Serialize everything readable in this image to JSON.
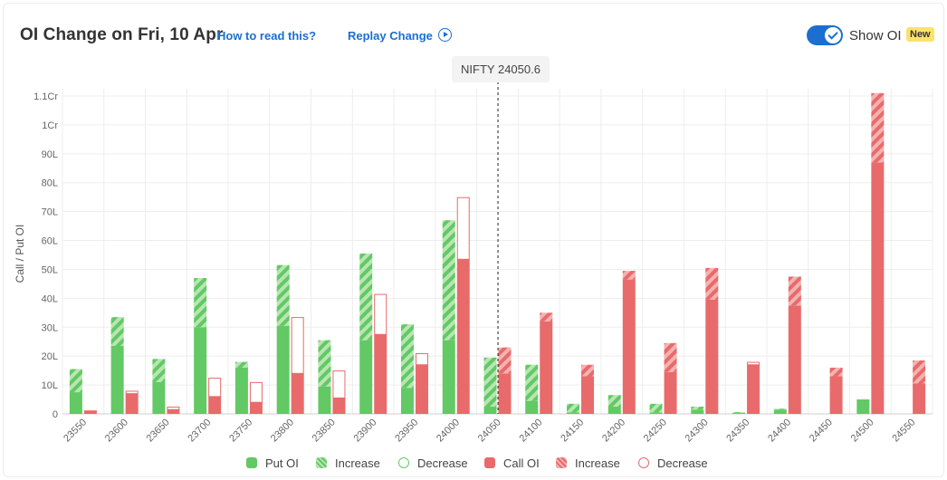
{
  "header": {
    "title": "OI Change on Fri, 10 Apr",
    "how_to_label": "How to read this?",
    "replay_label": "Replay Change",
    "show_oi_label": "Show OI",
    "new_badge": "New",
    "show_oi_enabled": true
  },
  "spot": {
    "label": "NIFTY 24050.6"
  },
  "colors": {
    "put": "#62c965",
    "put_light": "#b8e6b2",
    "call": "#e96a6a",
    "call_light": "#f4b3b3",
    "grid": "#ededed",
    "accent": "#1a6fd1"
  },
  "legend": [
    {
      "label": "Put OI",
      "kind": "solid",
      "side": "put"
    },
    {
      "label": "Increase",
      "kind": "hatch",
      "side": "put"
    },
    {
      "label": "Decrease",
      "kind": "outline",
      "side": "put"
    },
    {
      "label": "Call OI",
      "kind": "solid",
      "side": "call"
    },
    {
      "label": "Increase",
      "kind": "hatch",
      "side": "call"
    },
    {
      "label": "Decrease",
      "kind": "outline",
      "side": "call"
    }
  ],
  "chart_data": {
    "type": "bar",
    "ylabel": "Call / Put OI",
    "ylim": [
      0,
      110
    ],
    "y_ticks": [
      {
        "value": 0,
        "label": "0"
      },
      {
        "value": 10,
        "label": "10L"
      },
      {
        "value": 20,
        "label": "20L"
      },
      {
        "value": 30,
        "label": "30L"
      },
      {
        "value": 40,
        "label": "40L"
      },
      {
        "value": 50,
        "label": "50L"
      },
      {
        "value": 60,
        "label": "60L"
      },
      {
        "value": 70,
        "label": "70L"
      },
      {
        "value": 80,
        "label": "80L"
      },
      {
        "value": 90,
        "label": "90L"
      },
      {
        "value": 100,
        "label": "1Cr"
      },
      {
        "value": 110,
        "label": "1.1Cr"
      }
    ],
    "spot_strike": 24050.6,
    "categories": [
      "23550",
      "23600",
      "23650",
      "23700",
      "23750",
      "23800",
      "23850",
      "23900",
      "23950",
      "24000",
      "24050",
      "24100",
      "24150",
      "24200",
      "24250",
      "24300",
      "24350",
      "24400",
      "24450",
      "24500",
      "24550"
    ],
    "series": [
      {
        "name": "Put OI",
        "oi": [
          7.5,
          23.5,
          11,
          30,
          16,
          30.5,
          9.5,
          25.5,
          9,
          25.5,
          2.5,
          4.5,
          0.5,
          2.5,
          0.5,
          1.5,
          0.3,
          1.5,
          0,
          5,
          0
        ],
        "change": [
          8,
          10,
          8,
          17,
          2,
          21,
          16,
          30,
          22,
          41.5,
          17,
          12.5,
          3,
          4,
          3,
          1,
          0.3,
          0.3,
          0,
          0,
          0
        ]
      },
      {
        "name": "Call OI",
        "oi": [
          1.2,
          7,
          1.5,
          6,
          4,
          14,
          5.5,
          27.5,
          17,
          53.5,
          14,
          32,
          13,
          46.5,
          14.5,
          39.5,
          17,
          37.5,
          13,
          87,
          10.5
        ],
        "change": [
          0,
          -1,
          -1,
          -6.5,
          -7,
          -19.5,
          -9.5,
          -14,
          -4,
          -21.5,
          9,
          3,
          4,
          3,
          10,
          11,
          -1,
          10,
          3,
          24,
          8
        ]
      }
    ]
  }
}
